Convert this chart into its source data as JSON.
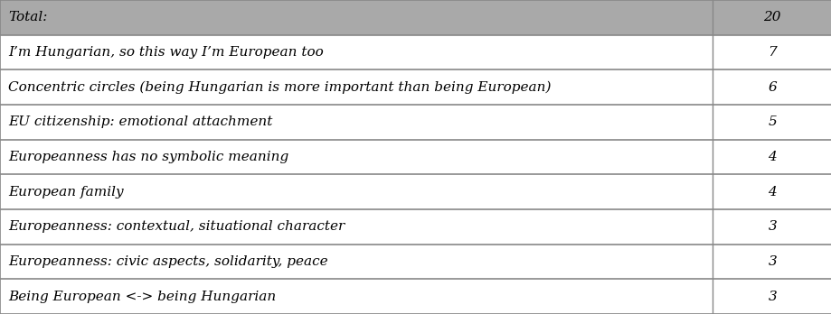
{
  "rows": [
    {
      "label": "Total:",
      "value": "20",
      "is_header": true
    },
    {
      "label": "I’m Hungarian, so this way I’m European too",
      "value": "7",
      "is_header": false
    },
    {
      "label": "Concentric circles (being Hungarian is more important than being European)",
      "value": "6",
      "is_header": false
    },
    {
      "label": "EU citizenship: emotional attachment",
      "value": "5",
      "is_header": false
    },
    {
      "label": "Europeanness has no symbolic meaning",
      "value": "4",
      "is_header": false
    },
    {
      "label": "European family",
      "value": "4",
      "is_header": false
    },
    {
      "label": "Europeanness: contextual, situational character",
      "value": "3",
      "is_header": false
    },
    {
      "label": "Europeanness: civic aspects, solidarity, peace",
      "value": "3",
      "is_header": false
    },
    {
      "label": "Being European <-> being Hungarian",
      "value": "3",
      "is_header": false
    }
  ],
  "header_bg": "#a9a9a9",
  "row_bg": "#ffffff",
  "header_text_color": "#000000",
  "row_text_color": "#000000",
  "border_color": "#888888",
  "font_size": 11.0,
  "col_split": 0.857,
  "fig_width": 9.2,
  "fig_height": 3.48,
  "dpi": 100
}
